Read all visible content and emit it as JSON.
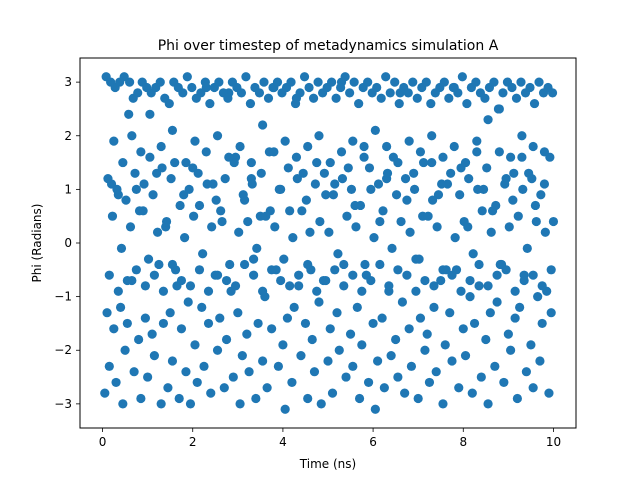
{
  "chart_data": {
    "type": "scatter",
    "title": "Phi over timestep of metadynamics simulation A",
    "xlabel": "Time (ns)",
    "ylabel": "Phi (Radians)",
    "xlim": [
      -0.5,
      10.5
    ],
    "ylim": [
      -3.45,
      3.45
    ],
    "xticks": [
      0,
      2,
      4,
      6,
      8,
      10
    ],
    "yticks": [
      -3,
      -2,
      -1,
      0,
      1,
      2,
      3
    ],
    "grid": false,
    "legend": "none",
    "marker_color": "#1f77b4",
    "series": [
      {
        "x": [
          0.05,
          0.1,
          0.15,
          0.2,
          0.25,
          0.3,
          0.35,
          0.4,
          0.45,
          0.5,
          0.55,
          0.6,
          0.65,
          0.7,
          0.75,
          0.8,
          0.85,
          0.9,
          0.95,
          1.0,
          1.05,
          1.1,
          1.15,
          1.2,
          1.25,
          1.3,
          1.35,
          1.4,
          1.45,
          1.5,
          1.55,
          1.6,
          1.65,
          1.7,
          1.75,
          1.8,
          1.85,
          1.9,
          1.95,
          2.0,
          2.05,
          2.1,
          2.15,
          2.2,
          2.25,
          2.3,
          2.35,
          2.4,
          2.45,
          2.5,
          2.55,
          2.6,
          2.65,
          2.7,
          2.75,
          2.8,
          2.85,
          2.9,
          2.95,
          3.0,
          3.05,
          3.1,
          3.15,
          3.2,
          3.25,
          3.3,
          3.35,
          3.4,
          3.45,
          3.5,
          3.55,
          3.6,
          3.65,
          3.7,
          3.75,
          3.8,
          3.85,
          3.9,
          3.95,
          4.0,
          4.05,
          4.1,
          4.15,
          4.2,
          4.25,
          4.3,
          4.35,
          4.4,
          4.45,
          4.5,
          4.55,
          4.6,
          4.65,
          4.7,
          4.75,
          4.8,
          4.85,
          4.9,
          4.95,
          5.0,
          5.05,
          5.1,
          5.15,
          5.2,
          5.25,
          5.3,
          5.35,
          5.4,
          5.45,
          5.5,
          5.55,
          5.6,
          5.65,
          5.7,
          5.75,
          5.8,
          5.85,
          5.9,
          5.95,
          6.0,
          6.05,
          6.1,
          6.15,
          6.2,
          6.25,
          6.3,
          6.35,
          6.4,
          6.45,
          6.5,
          6.55,
          6.6,
          6.65,
          6.7,
          6.75,
          6.8,
          6.85,
          6.9,
          6.95,
          7.0,
          7.05,
          7.1,
          7.15,
          7.2,
          7.25,
          7.3,
          7.35,
          7.4,
          7.45,
          7.5,
          7.55,
          7.6,
          7.65,
          7.7,
          7.75,
          7.8,
          7.85,
          7.9,
          7.95,
          8.0,
          8.05,
          8.1,
          8.15,
          8.2,
          8.25,
          8.3,
          8.35,
          8.4,
          8.45,
          8.5,
          8.55,
          8.6,
          8.65,
          8.7,
          8.75,
          8.8,
          8.85,
          8.9,
          8.95,
          9.0,
          9.05,
          9.1,
          9.15,
          9.2,
          9.25,
          9.3,
          9.35,
          9.4,
          9.45,
          9.5,
          9.55,
          9.6,
          9.65,
          9.7,
          9.75,
          9.8,
          9.85,
          9.9,
          9.95,
          10.0,
          0.08,
          0.18,
          0.28,
          0.38,
          0.48,
          0.58,
          0.68,
          0.78,
          0.88,
          0.98,
          1.08,
          1.18,
          1.28,
          1.38,
          1.48,
          1.58,
          1.68,
          1.78,
          1.88,
          1.98,
          2.08,
          2.18,
          2.28,
          2.38,
          2.48,
          2.58,
          2.68,
          2.78,
          2.88,
          2.98,
          3.08,
          3.18,
          3.28,
          3.38,
          3.48,
          3.58,
          3.68,
          3.78,
          3.88,
          3.98,
          4.08,
          4.18,
          4.28,
          4.38,
          4.48,
          4.58,
          4.68,
          4.78,
          4.88,
          4.98,
          5.08,
          5.18,
          5.28,
          5.38,
          5.48,
          5.58,
          5.68,
          5.78,
          5.88,
          5.98,
          6.08,
          6.18,
          6.28,
          6.38,
          6.48,
          6.58,
          6.68,
          6.78,
          6.88,
          6.98,
          7.08,
          7.18,
          7.28,
          7.38,
          7.48,
          7.58,
          7.68,
          7.78,
          7.88,
          7.98,
          8.08,
          8.18,
          8.28,
          8.38,
          8.48,
          8.58,
          8.68,
          8.78,
          8.88,
          8.98,
          9.08,
          9.18,
          9.28,
          9.38,
          9.48,
          9.58,
          9.68,
          9.78,
          9.88,
          9.98,
          0.12,
          0.32,
          0.52,
          0.72,
          0.92,
          1.12,
          1.32,
          1.52,
          1.72,
          1.92,
          2.12,
          2.32,
          2.52,
          2.72,
          2.92,
          3.12,
          3.32,
          3.52,
          3.72,
          3.92,
          4.12,
          4.32,
          4.52,
          4.72,
          4.92,
          5.12,
          5.32,
          5.52,
          5.72,
          5.92,
          6.12,
          6.32,
          6.52,
          6.72,
          6.92,
          7.12,
          7.32,
          7.52,
          7.72,
          7.92,
          8.12,
          8.32,
          8.52,
          8.72,
          8.92,
          9.12,
          9.32,
          9.52,
          9.72,
          9.92,
          0.22,
          0.42,
          0.62,
          0.82,
          1.02,
          1.22,
          1.42,
          1.62,
          1.82,
          2.02,
          2.22,
          2.42,
          2.62,
          2.82,
          3.02,
          3.22,
          3.42,
          3.62,
          3.82,
          4.02,
          4.22,
          4.42,
          4.62,
          4.82,
          5.02,
          5.22,
          5.42,
          5.62,
          5.82,
          6.02,
          6.22,
          6.42,
          6.62,
          6.82,
          7.02,
          7.22,
          7.42,
          7.62,
          7.82,
          8.02,
          8.22,
          8.42,
          8.62,
          8.82,
          9.02,
          9.22,
          9.42,
          9.62,
          9.82,
          0.25,
          0.45,
          0.65,
          0.85,
          1.05,
          1.3,
          1.55,
          1.85,
          2.05,
          2.3,
          2.55,
          2.8,
          3.05,
          3.3,
          3.55,
          3.8,
          4.05,
          4.3,
          4.55,
          4.8,
          5.05,
          5.3,
          5.55,
          5.8,
          6.05,
          6.3,
          6.55,
          6.8,
          7.05,
          7.3,
          7.55,
          7.8,
          8.05,
          8.3,
          8.55,
          8.8,
          9.05,
          9.3,
          9.55,
          9.8,
          0.15,
          0.35,
          0.55,
          0.75,
          0.95,
          1.15,
          1.35,
          1.55,
          1.75,
          1.95,
          2.15,
          2.35,
          2.55,
          2.75,
          2.95,
          3.15,
          3.35,
          3.55,
          3.75,
          3.95,
          4.15,
          4.35,
          4.55,
          4.75,
          4.95,
          5.15,
          5.35,
          5.55,
          5.75,
          5.95,
          6.15,
          6.35,
          6.55,
          6.75,
          6.95,
          7.15,
          7.35,
          7.55,
          7.75,
          7.95,
          8.15,
          8.35,
          8.55,
          8.75,
          8.95,
          9.15,
          9.35,
          9.55,
          9.75,
          9.95
        ],
        "y": [
          -2.8,
          -1.3,
          -2.3,
          1.1,
          -1.6,
          -2.6,
          0.9,
          -1.2,
          -3.0,
          -2.0,
          -1.5,
          3.0,
          -0.7,
          -2.4,
          1.0,
          -1.8,
          -2.9,
          0.6,
          -1.4,
          -2.5,
          2.4,
          -1.7,
          -2.1,
          1.3,
          -0.4,
          -3.0,
          -1.5,
          0.3,
          -2.7,
          -1.3,
          -2.2,
          1.5,
          -0.8,
          -2.9,
          -1.6,
          0.9,
          -2.4,
          -1.1,
          -3.0,
          1.4,
          -1.9,
          -2.6,
          0.7,
          -1.2,
          -2.3,
          2.9,
          -1.5,
          -2.8,
          1.1,
          -0.6,
          -2.0,
          -1.4,
          0.4,
          -2.7,
          -1.8,
          2.8,
          -0.9,
          -2.5,
          1.6,
          -1.3,
          -3.0,
          -2.1,
          0.8,
          -1.7,
          -2.4,
          1.2,
          -0.3,
          -2.9,
          -1.5,
          0.5,
          -2.2,
          -1.0,
          -2.7,
          1.7,
          -1.6,
          2.9,
          -0.5,
          -2.3,
          1.0,
          -1.9,
          -3.1,
          -1.4,
          0.6,
          -2.6,
          -1.2,
          2.7,
          -0.8,
          -2.1,
          1.3,
          -1.5,
          -2.9,
          0.2,
          -1.8,
          -2.4,
          1.5,
          -1.1,
          -3.0,
          -0.7,
          0.9,
          -2.2,
          -1.6,
          -2.8,
          1.1,
          -1.3,
          -2.0,
          3.0,
          -0.4,
          -2.5,
          1.4,
          -1.7,
          -2.3,
          0.7,
          -1.2,
          -2.9,
          -1.9,
          1.8,
          -0.6,
          -2.6,
          1.0,
          -1.5,
          -3.1,
          -2.2,
          0.4,
          -1.4,
          -2.7,
          1.2,
          -0.9,
          -2.1,
          1.6,
          -1.8,
          -2.5,
          2.8,
          -1.1,
          -2.8,
          0.8,
          -1.6,
          -2.3,
          1.3,
          -0.3,
          -2.9,
          -1.4,
          0.5,
          -2.0,
          -1.7,
          -2.6,
          1.5,
          -1.2,
          -2.4,
          0.9,
          -0.7,
          -3.0,
          -1.9,
          1.1,
          -1.3,
          -2.2,
          2.9,
          -0.5,
          -2.7,
          1.4,
          -1.6,
          -2.1,
          0.3,
          -1.0,
          -2.8,
          -1.5,
          1.7,
          -0.8,
          -2.5,
          1.0,
          -1.8,
          -3.0,
          -1.3,
          0.6,
          -2.3,
          -1.1,
          2.5,
          -0.4,
          -2.6,
          1.2,
          -1.7,
          -2.0,
          0.8,
          -1.4,
          -2.9,
          -1.2,
          1.6,
          -0.6,
          -2.4,
          1.3,
          -1.9,
          -2.7,
          0.7,
          -1.0,
          -2.2,
          -1.5,
          1.1,
          -0.9,
          -2.8,
          -1.3,
          0.4,
          3.1,
          3.0,
          2.9,
          3.0,
          3.1,
          2.4,
          2.7,
          2.8,
          3.0,
          2.9,
          2.8,
          2.9,
          3.0,
          2.7,
          2.6,
          3.0,
          2.9,
          2.8,
          3.1,
          2.9,
          2.7,
          2.8,
          3.0,
          2.6,
          2.9,
          3.0,
          2.8,
          2.7,
          3.0,
          2.9,
          2.8,
          3.1,
          2.6,
          2.9,
          2.8,
          3.0,
          2.7,
          2.9,
          3.0,
          2.8,
          2.9,
          3.0,
          2.6,
          2.8,
          3.1,
          2.9,
          2.7,
          3.0,
          2.8,
          2.9,
          3.0,
          2.7,
          2.9,
          3.1,
          2.8,
          3.0,
          2.6,
          2.9,
          3.0,
          2.8,
          2.9,
          2.7,
          3.1,
          2.8,
          3.0,
          2.6,
          2.9,
          2.8,
          3.0,
          2.7,
          2.9,
          3.0,
          2.6,
          2.8,
          2.9,
          3.0,
          2.7,
          2.9,
          2.8,
          3.1,
          2.6,
          2.9,
          3.0,
          2.8,
          2.7,
          2.9,
          3.0,
          2.5,
          2.8,
          3.0,
          2.9,
          2.7,
          3.0,
          2.8,
          2.9,
          2.6,
          3.0,
          2.8,
          2.9,
          2.8,
          1.2,
          1.0,
          0.8,
          1.3,
          1.1,
          0.9,
          1.4,
          1.2,
          0.7,
          1.0,
          1.3,
          1.1,
          0.8,
          1.2,
          1.5,
          0.9,
          1.1,
          1.3,
          0.6,
          1.0,
          1.4,
          1.2,
          0.8,
          1.1,
          1.3,
          0.9,
          1.2,
          1.0,
          0.7,
          1.4,
          1.1,
          1.3,
          0.9,
          1.2,
          1.0,
          1.5,
          0.8,
          1.1,
          1.3,
          0.9,
          1.2,
          1.0,
          1.4,
          0.7,
          1.1,
          1.3,
          1.0,
          1.2,
          0.9,
          1.6,
          0.5,
          -0.1,
          0.3,
          0.6,
          -0.3,
          0.2,
          0.4,
          -0.5,
          0.1,
          0.5,
          -0.2,
          0.3,
          0.6,
          -0.4,
          0.2,
          0.4,
          -0.1,
          0.5,
          0.3,
          -0.3,
          0.1,
          0.6,
          -0.5,
          0.4,
          0.2,
          -0.2,
          0.5,
          0.3,
          -0.4,
          0.1,
          0.6,
          -0.1,
          0.4,
          0.2,
          -0.3,
          0.5,
          0.3,
          -0.5,
          0.1,
          0.4,
          -0.2,
          0.6,
          0.2,
          -0.4,
          0.3,
          0.5,
          -0.1,
          0.4,
          0.2,
          1.9,
          1.5,
          2.0,
          1.7,
          1.6,
          1.8,
          2.1,
          1.5,
          1.9,
          1.7,
          2.0,
          1.6,
          1.8,
          1.5,
          2.2,
          1.7,
          1.9,
          1.6,
          1.8,
          2.0,
          1.5,
          1.7,
          1.9,
          1.6,
          2.1,
          1.8,
          1.5,
          1.9,
          1.7,
          2.0,
          1.6,
          1.8,
          1.5,
          1.9,
          2.3,
          1.7,
          1.6,
          2.0,
          1.8,
          1.7,
          -0.6,
          -0.9,
          -0.7,
          -0.5,
          -0.8,
          -0.6,
          -0.9,
          -0.4,
          -0.7,
          -0.8,
          -0.5,
          -0.9,
          -0.6,
          -0.7,
          -0.8,
          -0.4,
          -0.6,
          -0.9,
          -0.5,
          -0.7,
          -0.8,
          -0.6,
          -0.4,
          -0.9,
          -0.7,
          -0.5,
          -0.8,
          -0.6,
          -0.9,
          -0.7,
          -0.4,
          -0.8,
          -0.5,
          -0.6,
          -0.9,
          -0.7,
          -0.8,
          -0.5,
          -0.6,
          -0.9,
          -0.7,
          -0.4,
          -0.8,
          -0.6,
          -0.5,
          -0.9,
          -0.7,
          -0.6,
          -0.8,
          -0.5
        ]
      }
    ]
  }
}
